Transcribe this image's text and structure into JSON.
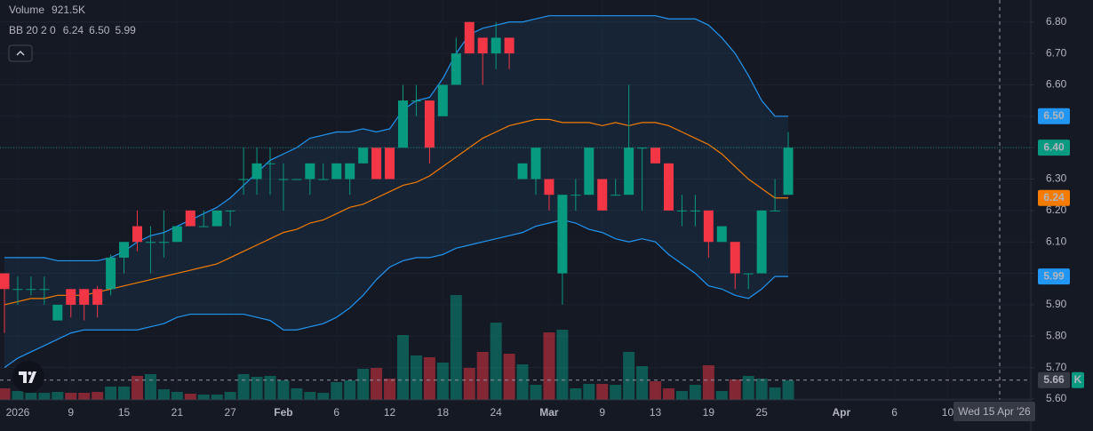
{
  "chart_data": {
    "type": "candlestick",
    "categories": [
      null,
      "2026",
      null,
      null,
      null,
      "9",
      null,
      null,
      null,
      "15",
      null,
      null,
      null,
      "21",
      null,
      null,
      null,
      "27",
      null,
      null,
      null,
      "Feb",
      null,
      null,
      null,
      "6",
      null,
      null,
      null,
      "12",
      null,
      null,
      null,
      "18",
      null,
      null,
      null,
      "24",
      null,
      null,
      null,
      "Mar",
      null,
      null,
      null,
      "9",
      null,
      null,
      null,
      "13",
      null,
      null,
      null,
      "19",
      null,
      null,
      null,
      "25",
      null,
      null,
      null,
      null,
      null,
      "Apr",
      null,
      null,
      null,
      "6",
      null,
      null,
      null,
      "10"
    ],
    "open": [
      6.0,
      5.95,
      5.95,
      5.95,
      5.85,
      5.95,
      5.95,
      5.95,
      5.95,
      6.05,
      6.15,
      6.1,
      6.1,
      6.1,
      6.2,
      6.15,
      6.15,
      6.2,
      6.3,
      6.3,
      6.35,
      6.3,
      6.3,
      6.3,
      6.3,
      6.3,
      6.3,
      6.35,
      6.4,
      6.4,
      6.4,
      6.55,
      6.55,
      6.5,
      6.6,
      6.8,
      6.75,
      6.7,
      6.75,
      6.3,
      6.3,
      6.3,
      6.0,
      6.25,
      6.25,
      6.3,
      6.25,
      6.25,
      6.4,
      6.4,
      6.35,
      6.2,
      6.2,
      6.2,
      6.1,
      6.1,
      6.0,
      6.0,
      6.2,
      6.25,
      null,
      null,
      null,
      null,
      null,
      null,
      null,
      null,
      null,
      null,
      null,
      null
    ],
    "high": [
      6.0,
      5.99,
      5.99,
      5.99,
      5.9,
      5.95,
      5.95,
      5.96,
      6.06,
      6.1,
      6.2,
      6.15,
      6.2,
      6.15,
      6.2,
      6.2,
      6.2,
      6.2,
      6.4,
      6.4,
      6.4,
      6.35,
      6.3,
      6.35,
      6.35,
      6.35,
      6.35,
      6.4,
      6.4,
      6.4,
      6.6,
      6.6,
      6.55,
      6.6,
      6.75,
      6.8,
      6.75,
      6.8,
      6.75,
      6.35,
      6.4,
      6.3,
      6.25,
      6.3,
      6.4,
      6.3,
      6.3,
      6.6,
      6.4,
      6.4,
      6.35,
      6.25,
      6.25,
      6.2,
      6.15,
      6.1,
      6.0,
      6.2,
      6.3,
      6.45,
      null,
      null,
      null,
      null,
      null,
      null,
      null,
      null,
      null,
      null,
      null,
      null
    ],
    "low": [
      5.81,
      5.9,
      5.93,
      5.9,
      5.85,
      5.86,
      5.85,
      5.86,
      5.93,
      6.0,
      6.07,
      6.0,
      6.05,
      6.1,
      6.15,
      6.15,
      6.15,
      6.15,
      6.25,
      6.25,
      6.25,
      6.2,
      6.3,
      6.25,
      6.3,
      6.3,
      6.25,
      6.35,
      6.3,
      6.3,
      6.4,
      6.5,
      6.35,
      6.5,
      6.6,
      6.7,
      6.6,
      6.65,
      6.65,
      6.3,
      6.25,
      6.2,
      5.9,
      6.2,
      6.25,
      6.2,
      6.25,
      6.25,
      6.2,
      6.35,
      6.2,
      6.15,
      6.15,
      6.05,
      6.1,
      5.95,
      5.95,
      6.0,
      6.2,
      6.25,
      null,
      null,
      null,
      null,
      null,
      null,
      null,
      null,
      null,
      null,
      null,
      null
    ],
    "close": [
      5.95,
      5.95,
      5.95,
      5.95,
      5.9,
      5.9,
      5.9,
      5.9,
      6.05,
      6.1,
      6.1,
      6.1,
      6.1,
      6.15,
      6.15,
      6.15,
      6.2,
      6.2,
      6.3,
      6.35,
      6.35,
      6.3,
      6.3,
      6.35,
      6.3,
      6.35,
      6.35,
      6.4,
      6.3,
      6.3,
      6.55,
      6.55,
      6.4,
      6.6,
      6.7,
      6.7,
      6.7,
      6.75,
      6.7,
      6.35,
      6.4,
      6.25,
      6.25,
      6.25,
      6.4,
      6.2,
      6.25,
      6.4,
      6.4,
      6.35,
      6.2,
      6.2,
      6.2,
      6.1,
      6.15,
      6.0,
      6.0,
      6.2,
      6.2,
      6.4,
      null,
      null,
      null,
      null,
      null,
      null,
      null,
      null,
      null,
      null,
      null,
      null
    ],
    "up_color": "#089981",
    "down_color": "#f23645",
    "volume": {
      "values": [
        545000,
        419000,
        335000,
        335000,
        377000,
        335000,
        335000,
        377000,
        629000,
        629000,
        1131000,
        1215000,
        503000,
        377000,
        293000,
        251000,
        251000,
        377000,
        1215000,
        1089000,
        1131000,
        922000,
        545000,
        377000,
        335000,
        838000,
        922000,
        1467000,
        1508000,
        1006000,
        3059000,
        2095000,
        2011000,
        1760000,
        4944000,
        1508000,
        2263000,
        3645000,
        2179000,
        1676000,
        712000,
        3184000,
        3310000,
        545000,
        754000,
        754000,
        712000,
        2263000,
        1592000,
        880000,
        545000,
        419000,
        712000,
        1634000,
        419000,
        964000,
        1131000,
        1006000,
        587000,
        921500,
        null,
        null,
        null,
        null,
        null,
        null,
        null,
        null,
        null,
        null,
        null,
        null
      ]
    },
    "bands": [
      {
        "color": "#2196f3",
        "values": [
          6.05,
          6.05,
          6.05,
          6.05,
          6.04,
          6.04,
          6.04,
          6.04,
          6.05,
          6.07,
          6.1,
          6.12,
          6.13,
          6.15,
          6.17,
          6.19,
          6.21,
          6.24,
          6.28,
          6.32,
          6.36,
          6.38,
          6.4,
          6.43,
          6.44,
          6.45,
          6.45,
          6.46,
          6.45,
          6.46,
          6.52,
          6.55,
          6.56,
          6.62,
          6.7,
          6.76,
          6.78,
          6.79,
          6.8,
          6.8,
          6.81,
          6.82,
          6.82,
          6.82,
          6.82,
          6.82,
          6.82,
          6.82,
          6.82,
          6.82,
          6.81,
          6.81,
          6.81,
          6.79,
          6.75,
          6.7,
          6.63,
          6.55,
          6.5,
          6.5,
          null,
          null,
          null,
          null,
          null,
          null,
          null,
          null,
          null,
          null,
          null,
          null
        ]
      },
      {
        "color": "#f57c00",
        "values": [
          5.9,
          5.91,
          5.92,
          5.92,
          5.93,
          5.93,
          5.93,
          5.94,
          5.95,
          5.96,
          5.97,
          5.98,
          5.99,
          6.0,
          6.01,
          6.02,
          6.03,
          6.05,
          6.07,
          6.09,
          6.11,
          6.13,
          6.14,
          6.16,
          6.17,
          6.19,
          6.21,
          6.22,
          6.24,
          6.26,
          6.28,
          6.29,
          6.31,
          6.34,
          6.37,
          6.4,
          6.43,
          6.45,
          6.47,
          6.48,
          6.49,
          6.49,
          6.48,
          6.48,
          6.48,
          6.47,
          6.48,
          6.47,
          6.48,
          6.48,
          6.47,
          6.45,
          6.43,
          6.41,
          6.38,
          6.34,
          6.3,
          6.27,
          6.24,
          6.24,
          null,
          null,
          null,
          null,
          null,
          null,
          null,
          null,
          null,
          null,
          null,
          null
        ]
      },
      {
        "color": "#2196f3",
        "values": [
          5.7,
          5.73,
          5.75,
          5.77,
          5.79,
          5.81,
          5.82,
          5.82,
          5.82,
          5.82,
          5.82,
          5.83,
          5.84,
          5.86,
          5.87,
          5.87,
          5.87,
          5.87,
          5.87,
          5.86,
          5.85,
          5.82,
          5.82,
          5.83,
          5.84,
          5.86,
          5.89,
          5.93,
          5.98,
          6.02,
          6.04,
          6.05,
          6.05,
          6.06,
          6.08,
          6.09,
          6.1,
          6.11,
          6.12,
          6.13,
          6.15,
          6.16,
          6.17,
          6.16,
          6.14,
          6.13,
          6.11,
          6.1,
          6.11,
          6.1,
          6.06,
          6.03,
          6.0,
          5.96,
          5.95,
          5.93,
          5.92,
          5.95,
          5.99,
          5.99,
          null,
          null,
          null,
          null,
          null,
          null,
          null,
          null,
          null,
          null,
          null,
          null
        ]
      }
    ],
    "band_fill": "rgba(33,150,243,0.09)",
    "legend": [
      {
        "name": "Volume",
        "values": [
          {
            "value": 921500,
            "label": "921.5K",
            "color": "#089981"
          }
        ]
      },
      {
        "name": "BB 20 2 0",
        "values": [
          {
            "value": 6.24,
            "label": "6.24",
            "color": "#f57c00"
          },
          {
            "value": 6.5,
            "label": "6.50",
            "color": "#2196f3"
          },
          {
            "value": 5.99,
            "label": "5.99",
            "color": "#2196f3"
          }
        ]
      }
    ],
    "ylim": [
      5.6,
      6.87
    ],
    "yticks": [
      {
        "value": 5.6,
        "label": "5.60"
      },
      {
        "value": 5.7,
        "label": "5.70"
      },
      {
        "value": 5.8,
        "label": "5.80"
      },
      {
        "value": 5.9,
        "label": "5.90"
      },
      {
        "value": 6.0,
        "label": "6.00"
      },
      {
        "value": 6.1,
        "label": "6.10"
      },
      {
        "value": 6.2,
        "label": "6.20"
      },
      {
        "value": 6.3,
        "label": "6.30"
      },
      {
        "value": 6.4,
        "label": "6.40"
      },
      {
        "value": 6.5,
        "label": "6.50"
      },
      {
        "value": 6.6,
        "label": "6.60"
      },
      {
        "value": 6.7,
        "label": "6.70"
      },
      {
        "value": 6.8,
        "label": "6.80"
      }
    ],
    "grid": true,
    "price_labels": [
      {
        "value": 6.5,
        "label": "6.50",
        "color": "#2196f3"
      },
      {
        "value": 6.4,
        "label": "6.40",
        "color": "#089981",
        "dotted_line": true
      },
      {
        "value": 6.24,
        "label": "6.24",
        "color": "#f57c00"
      },
      {
        "value": 5.99,
        "label": "5.99",
        "color": "#2196f3"
      }
    ],
    "crosshair": {
      "price": {
        "value": 5.66,
        "label": "5.66"
      },
      "date": "Wed 15 Apr '26",
      "key": "K"
    }
  }
}
